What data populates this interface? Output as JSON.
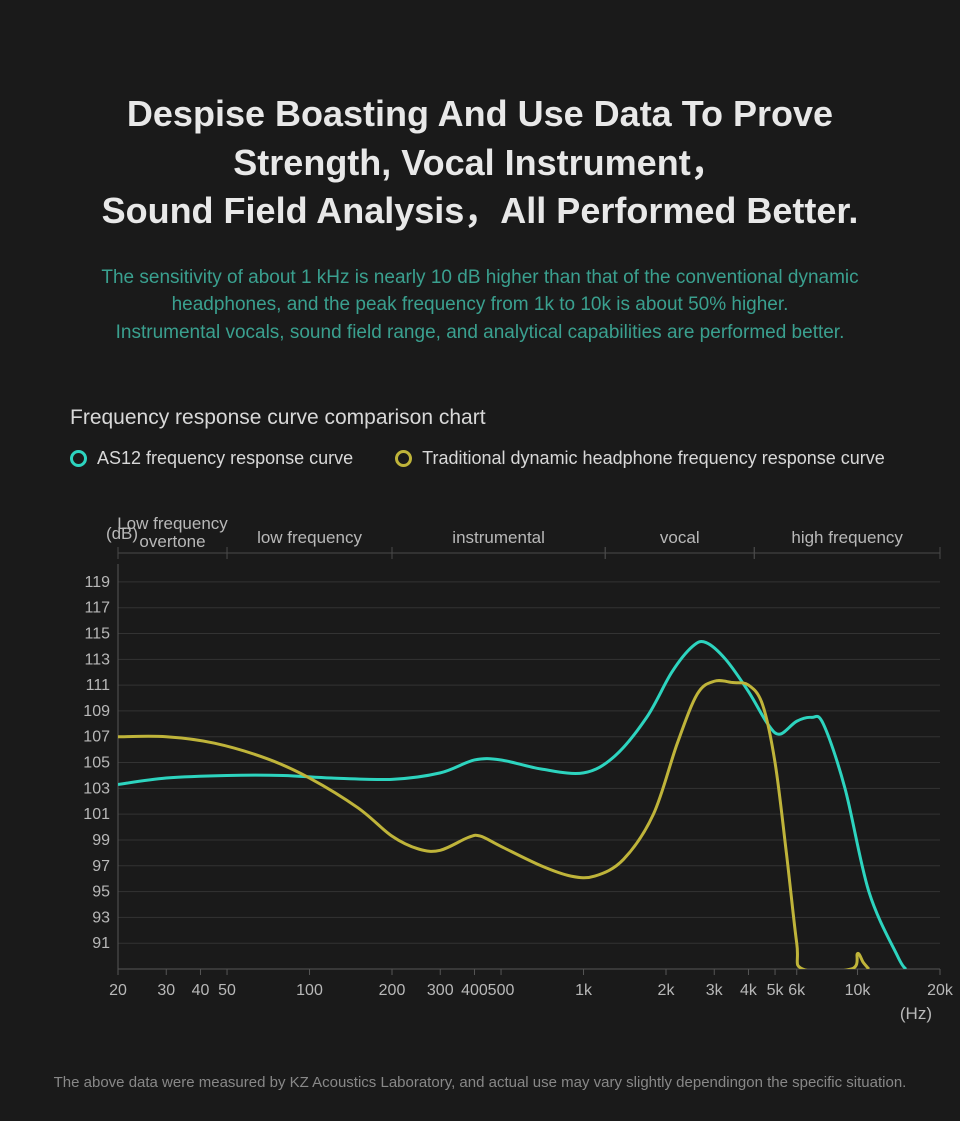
{
  "title_line1": "Despise Boasting And Use Data To Prove",
  "title_line2": "Strength, Vocal Instrument，",
  "title_line3": "Sound Field Analysis，All Performed Better.",
  "subtitle_line1": "The sensitivity of about 1 kHz is nearly 10 dB higher than that of the conventional dynamic",
  "subtitle_line2": "headphones, and the peak frequency from 1k to 10k is about 50% higher.",
  "subtitle_line3": "Instrumental vocals, sound field range, and analytical capabilities are performed better.",
  "chart_title": "Frequency response curve comparison chart",
  "legend": {
    "series1": {
      "label": "AS12 frequency response curve",
      "color": "#2dd4bf"
    },
    "series2": {
      "label": "Traditional dynamic headphone frequency response curve",
      "color": "#bfb43a"
    }
  },
  "footnote": "The above data were measured by KZ Acoustics Laboratory, and actual use may vary slightly dependingon the specific situation.",
  "chart": {
    "type": "line",
    "y_axis": {
      "label": "(dB)",
      "min": 89,
      "max": 120,
      "ticks": [
        91,
        93,
        95,
        97,
        99,
        101,
        103,
        105,
        107,
        109,
        111,
        113,
        115,
        117,
        119
      ]
    },
    "x_axis": {
      "label": "(Hz)",
      "scale": "log",
      "min": 20,
      "max": 20000,
      "ticks": [
        {
          "v": 20,
          "l": "20"
        },
        {
          "v": 30,
          "l": "30"
        },
        {
          "v": 40,
          "l": "40"
        },
        {
          "v": 50,
          "l": "50"
        },
        {
          "v": 100,
          "l": "100"
        },
        {
          "v": 200,
          "l": "200"
        },
        {
          "v": 300,
          "l": "300"
        },
        {
          "v": 400,
          "l": "400"
        },
        {
          "v": 500,
          "l": "500"
        },
        {
          "v": 1000,
          "l": "1k"
        },
        {
          "v": 2000,
          "l": "2k"
        },
        {
          "v": 3000,
          "l": "3k"
        },
        {
          "v": 4000,
          "l": "4k"
        },
        {
          "v": 5000,
          "l": "5k"
        },
        {
          "v": 6000,
          "l": "6k"
        },
        {
          "v": 10000,
          "l": "10k"
        },
        {
          "v": 20000,
          "l": "20k"
        }
      ]
    },
    "regions": [
      {
        "label_line1": "Low frequency",
        "label_line2": "overtone",
        "from": 20,
        "to": 50
      },
      {
        "label_line1": "low frequency",
        "label_line2": "",
        "from": 50,
        "to": 200
      },
      {
        "label_line1": "instrumental",
        "label_line2": "",
        "from": 200,
        "to": 1200
      },
      {
        "label_line1": "vocal",
        "label_line2": "",
        "from": 1200,
        "to": 4200
      },
      {
        "label_line1": "high frequency",
        "label_line2": "",
        "from": 4200,
        "to": 20000
      }
    ],
    "series": [
      {
        "name": "series1",
        "color": "#2dd4bf",
        "line_width": 3,
        "points": [
          [
            20,
            103.3
          ],
          [
            30,
            103.8
          ],
          [
            50,
            104
          ],
          [
            80,
            104
          ],
          [
            120,
            103.8
          ],
          [
            200,
            103.7
          ],
          [
            300,
            104.2
          ],
          [
            400,
            105.2
          ],
          [
            500,
            105.2
          ],
          [
            700,
            104.5
          ],
          [
            1000,
            104.2
          ],
          [
            1300,
            105.5
          ],
          [
            1700,
            108.5
          ],
          [
            2100,
            112
          ],
          [
            2500,
            114
          ],
          [
            2800,
            114.3
          ],
          [
            3300,
            113
          ],
          [
            4000,
            110.5
          ],
          [
            4700,
            108
          ],
          [
            5200,
            107.2
          ],
          [
            6000,
            108.2
          ],
          [
            6800,
            108.5
          ],
          [
            7500,
            108
          ],
          [
            9000,
            103
          ],
          [
            11000,
            95
          ],
          [
            14000,
            90
          ],
          [
            15000,
            89
          ]
        ]
      },
      {
        "name": "series2",
        "color": "#bfb43a",
        "line_width": 3,
        "points": [
          [
            20,
            107
          ],
          [
            30,
            107
          ],
          [
            45,
            106.5
          ],
          [
            70,
            105.3
          ],
          [
            100,
            103.8
          ],
          [
            150,
            101.5
          ],
          [
            200,
            99.3
          ],
          [
            250,
            98.3
          ],
          [
            300,
            98.2
          ],
          [
            380,
            99.2
          ],
          [
            420,
            99.3
          ],
          [
            500,
            98.5
          ],
          [
            700,
            97
          ],
          [
            900,
            96.2
          ],
          [
            1100,
            96.2
          ],
          [
            1400,
            97.5
          ],
          [
            1800,
            101
          ],
          [
            2200,
            106.5
          ],
          [
            2600,
            110.3
          ],
          [
            3000,
            111.3
          ],
          [
            3500,
            111.2
          ],
          [
            4000,
            111
          ],
          [
            4500,
            109.5
          ],
          [
            5000,
            105
          ],
          [
            5500,
            98
          ],
          [
            6000,
            91
          ],
          [
            6300,
            89
          ],
          [
            9500,
            89
          ],
          [
            10000,
            90.2
          ],
          [
            10500,
            89.5
          ],
          [
            11000,
            89
          ]
        ]
      }
    ],
    "background_color": "#1a1a1a",
    "grid_color": "#333333",
    "axis_color": "#555555",
    "text_color": "#b8b8b8"
  }
}
